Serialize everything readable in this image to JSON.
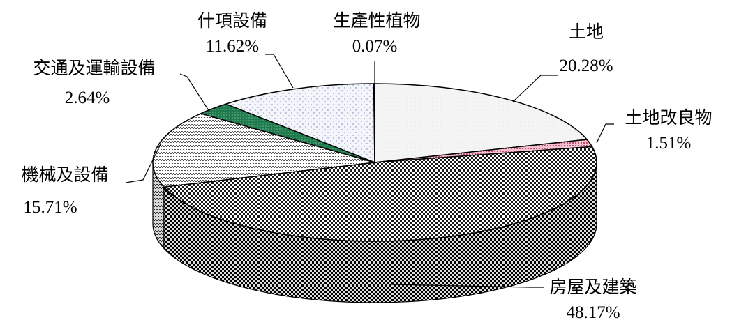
{
  "chart_data": {
    "type": "pie",
    "title": "",
    "series": [
      {
        "values": [
          20.28,
          1.51,
          48.17,
          15.71,
          2.64,
          11.62,
          0.07
        ]
      }
    ],
    "categories": [
      "土地",
      "土地改良物",
      "房屋及建築",
      "機械及設備",
      "交通及運輸設備",
      "什項設備",
      "生產性植物"
    ],
    "slices": [
      {
        "name": "土地",
        "value": 20.28,
        "value_label": "20.28%",
        "color": "#f2f2f2",
        "pattern": "light-fill"
      },
      {
        "name": "土地改良物",
        "value": 1.51,
        "value_label": "1.51%",
        "color": "#e79ab0",
        "pattern": "pink-dots"
      },
      {
        "name": "房屋及建築",
        "value": 48.17,
        "value_label": "48.17%",
        "color": "#2a2a2a",
        "pattern": "checkerboard"
      },
      {
        "name": "機械及設備",
        "value": 15.71,
        "value_label": "15.71%",
        "color": "#9a9a9a",
        "pattern": "fine-dots"
      },
      {
        "name": "交通及運輸設備",
        "value": 2.64,
        "value_label": "2.64%",
        "color": "#1f7a4d",
        "pattern": "green-dots"
      },
      {
        "name": "什項設備",
        "value": 11.62,
        "value_label": "11.62%",
        "color": "#e9edf8",
        "pattern": "blue-dots"
      },
      {
        "name": "生產性植物",
        "value": 0.07,
        "value_label": "0.07%",
        "color": "#ffffff",
        "pattern": "none"
      }
    ],
    "style": "3d-pie",
    "legend": "none",
    "labels": "outside-with-leader-lines"
  }
}
